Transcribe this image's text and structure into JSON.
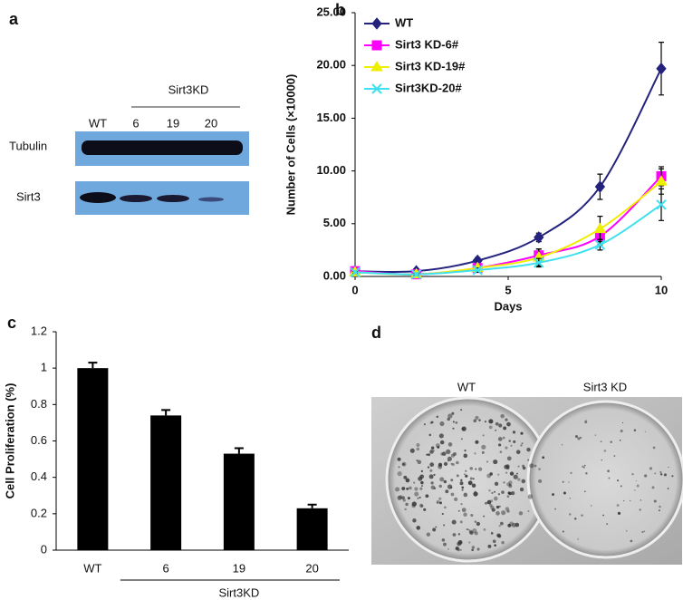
{
  "chart_data": [
    {
      "type": "line",
      "panel_label": "b",
      "xlabel": "Days",
      "ylabel": "Number of Cells (×10000)",
      "x": [
        0,
        2,
        4,
        6,
        8,
        10
      ],
      "xlim": [
        0,
        10
      ],
      "xticks": [
        0,
        5,
        10
      ],
      "ylim": [
        0,
        25
      ],
      "yticks": [
        {
          "value": 0,
          "label": "0.00"
        },
        {
          "value": 5,
          "label": "5.00"
        },
        {
          "value": 10,
          "label": "10.00"
        },
        {
          "value": 15,
          "label": "15.00"
        },
        {
          "value": 20,
          "label": "20.00"
        },
        {
          "value": 25,
          "label": "25.00"
        }
      ],
      "legend": "upper left",
      "series": [
        {
          "name": "WT",
          "color": "#23237e",
          "marker": "diamond",
          "values": [
            0.5,
            0.5,
            1.5,
            3.7,
            8.5,
            19.7
          ],
          "errors": [
            0.1,
            0.1,
            0.3,
            0.4,
            1.2,
            2.5
          ]
        },
        {
          "name": "Sirt3 KD-6#",
          "color": "#ff00ff",
          "marker": "square",
          "values": [
            0.5,
            0.2,
            0.8,
            2.0,
            3.8,
            9.5
          ],
          "errors": [
            0.1,
            0.1,
            0.2,
            0.6,
            0.8,
            0.9
          ]
        },
        {
          "name": "Sirt3 KD-19#",
          "color": "#eeee00",
          "marker": "triangle",
          "values": [
            0.4,
            0.2,
            0.8,
            1.8,
            4.5,
            9.0
          ],
          "errors": [
            0.1,
            0.1,
            0.2,
            0.8,
            1.2,
            1.2
          ]
        },
        {
          "name": "Sirt3KD-20#",
          "color": "#40e0f0",
          "marker": "cross",
          "values": [
            0.4,
            0.2,
            0.6,
            1.3,
            3.0,
            6.8
          ],
          "errors": [
            0.1,
            0.1,
            0.2,
            0.4,
            0.5,
            1.5
          ]
        }
      ]
    },
    {
      "type": "bar",
      "panel_label": "c",
      "ylabel": "Cell Proliferation (%)",
      "group_label": "Sirt3KD",
      "categories": [
        "WT",
        "6",
        "19",
        "20"
      ],
      "values": [
        1.0,
        0.74,
        0.53,
        0.23
      ],
      "errors": [
        0.03,
        0.03,
        0.03,
        0.02
      ],
      "color": "#000000",
      "ylim": [
        0,
        1.2
      ],
      "yticks": [
        0,
        0.2,
        0.4,
        0.6,
        0.8,
        1,
        1.2
      ]
    }
  ],
  "blot": {
    "panel_label": "a",
    "group_label": "Sirt3KD",
    "lanes": [
      "WT",
      "6",
      "19",
      "20"
    ],
    "rows": [
      "Tubulin",
      "Sirt3"
    ]
  },
  "colonies": {
    "panel_label": "d",
    "plates": [
      "WT",
      "Sirt3 KD"
    ]
  }
}
